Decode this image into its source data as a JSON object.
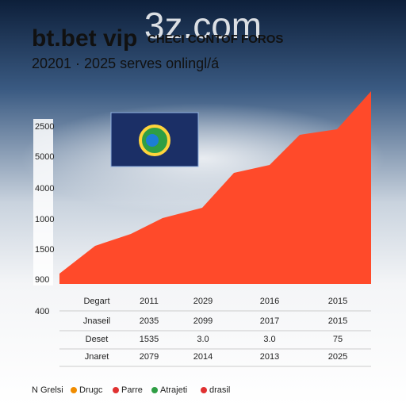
{
  "header": {
    "watermark": "3z.com",
    "title": "bt.bet vip",
    "tagline": "CHECI CONTOF FOROS",
    "subtitle": "20201 · 2025 serves onlingl/á"
  },
  "axis_labels": [
    "2500",
    "5000",
    "4000",
    "1000",
    "1500",
    "900",
    "400"
  ],
  "table": {
    "rows": [
      [
        "Degart",
        "2011",
        "2029",
        "2016",
        "2015"
      ],
      [
        "Jnaseil",
        "2035",
        "2099",
        "2017",
        "2015"
      ],
      [
        "Deset",
        "1535",
        "3.0",
        "3.0",
        "75"
      ],
      [
        "Jnaret",
        "2079",
        "2014",
        "2013",
        "2025"
      ]
    ]
  },
  "legend": [
    "N Grelsi",
    "Drugc",
    "Parre",
    "Atrajeti",
    "drasil"
  ]
}
